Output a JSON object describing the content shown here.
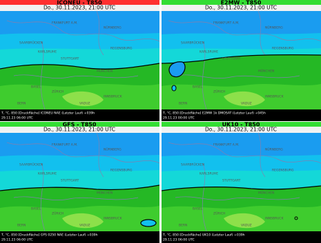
{
  "panels": [
    {
      "title": "ICONEU - T850",
      "date": "Do., 30.11.2023, 21:00 UTC",
      "footer": [
        "T, °C, 850 [Druckfläche] ICONEU NAE (Letzter Lauf) +039h",
        "29.11.23 06:00 UTC"
      ]
    },
    {
      "title": "E2MW - T850",
      "date": "Do., 30.11.2023, 21:00 UTC",
      "footer": [
        "T, °C, 850 [Druckfläche] E2MW 1k DMOSAT (Letzter Lauf) +045h",
        "29.11.23 00:00 UTC"
      ]
    },
    {
      "title": "GFS - T850",
      "date": "Do., 30.11.2023, 21:00 UTC",
      "footer": [
        "T, °C, 850 [Druckfläche] GFS 0250 NAE (Letzter Lauf) +039h",
        "29.11.23 06:00 UTC"
      ]
    },
    {
      "title": "UK10 - T850",
      "date": "Do., 30.11.2023, 21:00 UTC",
      "footer": [
        "T, °C, 850 [Druckfläche] UK10 (Letzter Lauf) +039h",
        "29.11.23 06:00 UTC"
      ]
    }
  ],
  "cities": [
    "FRANKFURT A.M.",
    "NÜRNBERG",
    "SAARBRÜCKEN",
    "KARLSRUHE",
    "STUTTGART",
    "REGENSBURG",
    "MÜNCHEN",
    "BASEL",
    "ZÜRICH",
    "INNSBRUCK",
    "BERN",
    "VADUZ"
  ]
}
